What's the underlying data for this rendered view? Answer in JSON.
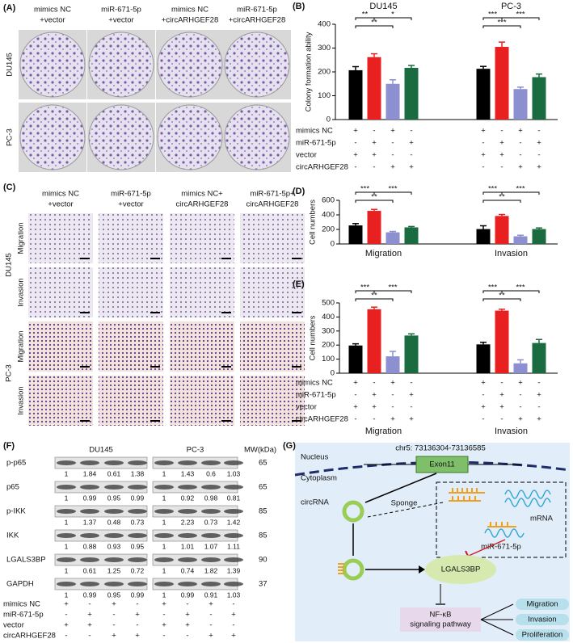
{
  "panel_A": {
    "label": "(A)",
    "columns": [
      [
        "mimics NC",
        "+vector"
      ],
      [
        "miR-671-5p",
        "+vector"
      ],
      [
        "mimics NC",
        "+circARHGEF28"
      ],
      [
        "miR-671-5p",
        "+circARHGEF28"
      ]
    ],
    "rows": [
      "DU145",
      "PC-3"
    ]
  },
  "panel_C": {
    "label": "(C)",
    "columns": [
      [
        "mimics NC",
        "+vector"
      ],
      [
        "miR-671-5p",
        "+vector"
      ],
      [
        "mimics NC+",
        "circARHGEF28"
      ],
      [
        "miR-671-5p+",
        "circARHGEF28"
      ]
    ],
    "cell_lines": [
      {
        "name": "DU145",
        "assays": [
          "Migration",
          "Invasion"
        ]
      },
      {
        "name": "PC-3",
        "assays": [
          "Migration",
          "Invasion"
        ]
      }
    ]
  },
  "chart_data": [
    {
      "type": "bar",
      "label": "(B)",
      "ylabel": "Colony formation ability",
      "categories": [
        "DU145",
        "PC-3"
      ],
      "ylim": [
        0,
        400
      ],
      "yticks": [
        0,
        100,
        200,
        300,
        400
      ],
      "series": [
        {
          "color": "#000000",
          "values": [
            207,
            213
          ],
          "errors": [
            15,
            10
          ]
        },
        {
          "color": "#e8201f",
          "values": [
            262,
            305
          ],
          "errors": [
            14,
            20
          ]
        },
        {
          "color": "#8c8fd0",
          "values": [
            150,
            128
          ],
          "errors": [
            17,
            8
          ]
        },
        {
          "color": "#1a6b3f",
          "values": [
            217,
            178
          ],
          "errors": [
            10,
            13
          ]
        }
      ],
      "significance": [
        [
          "**",
          "*",
          "**"
        ],
        [
          "***",
          "***",
          "***"
        ]
      ],
      "conditions": [
        {
          "label": "mimics NC",
          "signs": [
            "+",
            "-",
            "+",
            "-",
            "+",
            "-",
            "+",
            "-"
          ]
        },
        {
          "label": "miR-671-5p",
          "signs": [
            "-",
            "+",
            "-",
            "+",
            "-",
            "+",
            "-",
            "+"
          ]
        },
        {
          "label": "vector",
          "signs": [
            "+",
            "+",
            "-",
            "-",
            "+",
            "+",
            "-",
            "-"
          ]
        },
        {
          "label": "circARHGEF28",
          "signs": [
            "-",
            "-",
            "+",
            "+",
            "-",
            "-",
            "+",
            "+"
          ]
        }
      ]
    },
    {
      "type": "bar",
      "label": "(D)",
      "ylabel": "Cell numbers",
      "categories": [
        "Migration",
        "Invasion"
      ],
      "ylim": [
        0,
        600
      ],
      "yticks": [
        0,
        200,
        400,
        600
      ],
      "series": [
        {
          "color": "#000000",
          "values": [
            255,
            205
          ],
          "errors": [
            25,
            45
          ]
        },
        {
          "color": "#e8201f",
          "values": [
            455,
            385
          ],
          "errors": [
            20,
            20
          ]
        },
        {
          "color": "#8c8fd0",
          "values": [
            160,
            105
          ],
          "errors": [
            12,
            15
          ]
        },
        {
          "color": "#1a6b3f",
          "values": [
            228,
            205
          ],
          "errors": [
            12,
            15
          ]
        }
      ],
      "significance": [
        [
          "***",
          "***",
          "**"
        ],
        [
          "***",
          "***",
          "**"
        ]
      ]
    },
    {
      "type": "bar",
      "label": "(E)",
      "ylabel": "Cell numbers",
      "categories": [
        "Migration",
        "Invasion"
      ],
      "ylim": [
        0,
        500
      ],
      "yticks": [
        0,
        100,
        200,
        300,
        400,
        500
      ],
      "series": [
        {
          "color": "#000000",
          "values": [
            197,
            205
          ],
          "errors": [
            12,
            15
          ]
        },
        {
          "color": "#e8201f",
          "values": [
            455,
            445
          ],
          "errors": [
            15,
            10
          ]
        },
        {
          "color": "#8c8fd0",
          "values": [
            120,
            70
          ],
          "errors": [
            35,
            25
          ]
        },
        {
          "color": "#1a6b3f",
          "values": [
            268,
            215
          ],
          "errors": [
            12,
            25
          ]
        }
      ],
      "significance": [
        [
          "***",
          "***",
          "**"
        ],
        [
          "***",
          "***",
          "**"
        ]
      ],
      "conditions": [
        {
          "label": "mimics NC",
          "signs": [
            "+",
            "-",
            "+",
            "-",
            "+",
            "-",
            "+",
            "-"
          ]
        },
        {
          "label": "miR-671-5p",
          "signs": [
            "-",
            "+",
            "-",
            "+",
            "-",
            "+",
            "-",
            "+"
          ]
        },
        {
          "label": "vector",
          "signs": [
            "+",
            "+",
            "-",
            "-",
            "+",
            "+",
            "-",
            "-"
          ]
        },
        {
          "label": "circARHGEF28",
          "signs": [
            "-",
            "-",
            "+",
            "+",
            "-",
            "-",
            "+",
            "+"
          ]
        }
      ]
    }
  ],
  "panel_F": {
    "label": "(F)",
    "groups": [
      "DU145",
      "PC-3"
    ],
    "mw_header": "MW(kDa)",
    "rows": [
      {
        "protein": "p-p65",
        "mw": 65,
        "ratios": [
          [
            1,
            1.84,
            0.61,
            1.38
          ],
          [
            1,
            1.43,
            0.6,
            1.03
          ]
        ]
      },
      {
        "protein": "p65",
        "mw": 65,
        "ratios": [
          [
            1,
            0.99,
            0.95,
            0.99
          ],
          [
            1,
            0.92,
            0.98,
            0.81
          ]
        ]
      },
      {
        "protein": "p-IKK",
        "mw": 85,
        "ratios": [
          [
            1,
            1.37,
            0.48,
            0.73
          ],
          [
            1,
            2.23,
            0.73,
            1.42
          ]
        ]
      },
      {
        "protein": "IKK",
        "mw": 85,
        "ratios": [
          [
            1,
            0.88,
            0.93,
            0.95
          ],
          [
            1,
            1.01,
            1.07,
            1.11
          ]
        ]
      },
      {
        "protein": "LGALS3BP",
        "mw": 90,
        "ratios": [
          [
            1,
            0.61,
            1.25,
            0.72
          ],
          [
            1,
            0.74,
            1.82,
            1.39
          ]
        ]
      },
      {
        "protein": "GAPDH",
        "mw": 37,
        "ratios": [
          [
            1,
            0.99,
            0.95,
            0.99
          ],
          [
            1,
            0.99,
            0.91,
            1.03
          ]
        ]
      }
    ],
    "conditions": [
      {
        "label": "mimics NC",
        "signs": [
          "+",
          "-",
          "+",
          "-",
          "+",
          "-",
          "+",
          "-"
        ]
      },
      {
        "label": "miR-671-5p",
        "signs": [
          "-",
          "+",
          "-",
          "+",
          "-",
          "+",
          "-",
          "+"
        ]
      },
      {
        "label": "vector",
        "signs": [
          "+",
          "+",
          "-",
          "-",
          "+",
          "+",
          "-",
          "-"
        ]
      },
      {
        "label": "circARHGEF28",
        "signs": [
          "-",
          "-",
          "+",
          "+",
          "-",
          "-",
          "+",
          "+"
        ]
      }
    ]
  },
  "panel_G": {
    "label": "(G)",
    "locus": "chr5: 73136304-73136585",
    "nucleus": "Nucleus",
    "exon": "Exon11",
    "cytoplasm": "Cytoplasm",
    "circrna": "circRNA",
    "sponge": "Sponge",
    "mirna": "miR-671-5p",
    "mrna": "mRNA",
    "target": "LGALS3BP",
    "pathway": [
      "NF-κB",
      "signaling pathway"
    ],
    "outcomes": [
      "Migration",
      "Invasion",
      "Proliferation"
    ]
  }
}
